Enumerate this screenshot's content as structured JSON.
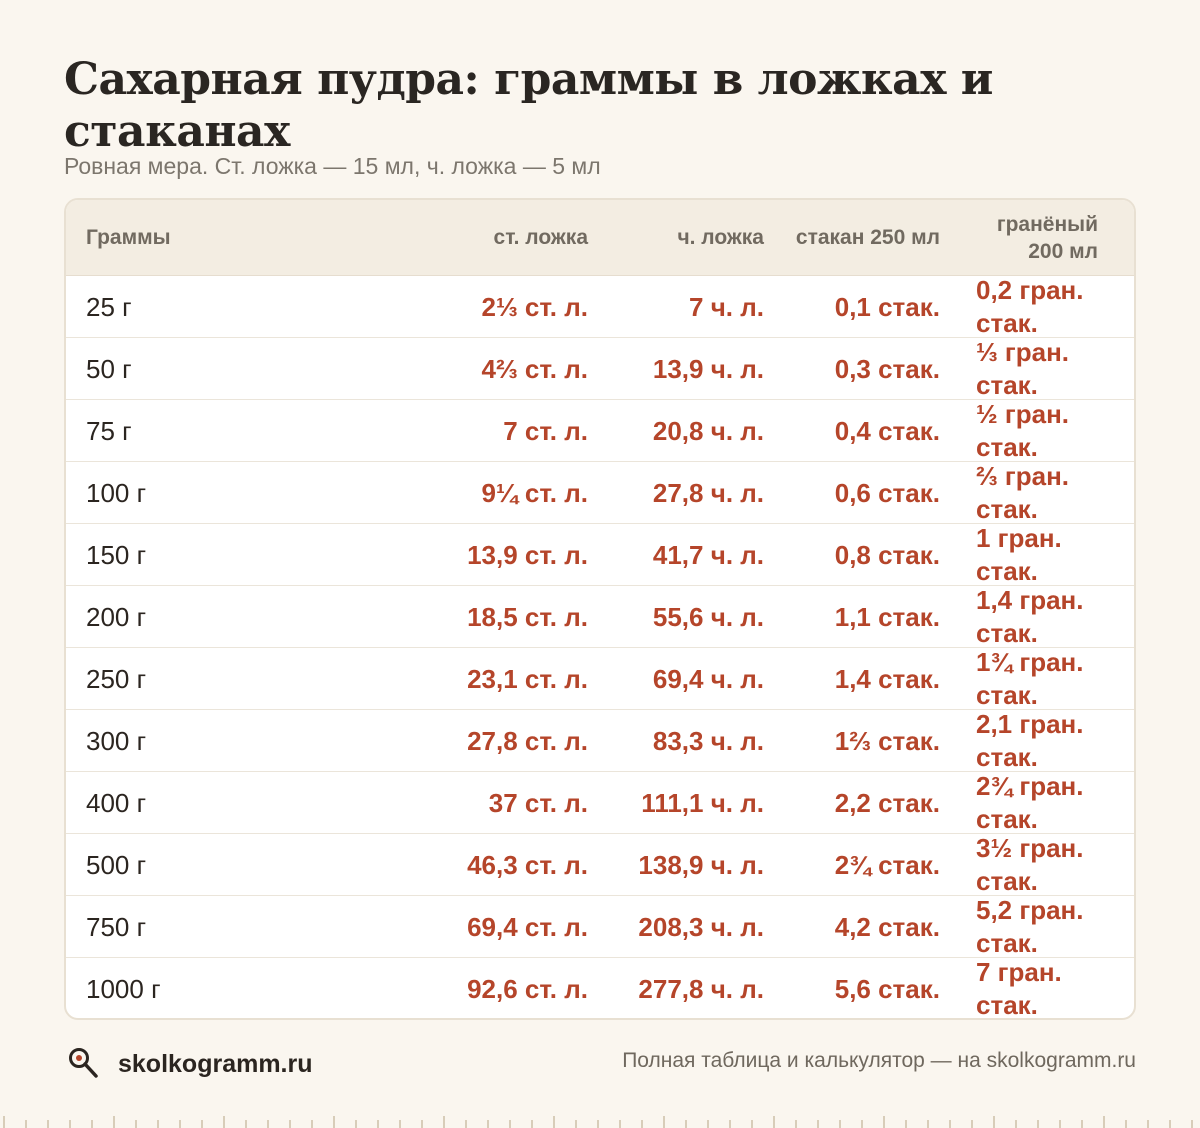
{
  "title": "Сахарная пудра: граммы в ложках и стаканах",
  "subtitle": "Ровная мера. Ст. ложка — 15 мл, ч. ложка — 5 мл",
  "columns": [
    "Граммы",
    "ст. ложка",
    "ч. ложка",
    "стакан 250 мл",
    "гранёный 200 мл"
  ],
  "rows": [
    [
      "25 г",
      "2⅓ ст. л.",
      "7 ч. л.",
      "0,1 стак.",
      "0,2 гран. стак."
    ],
    [
      "50 г",
      "4⅔ ст. л.",
      "13,9 ч. л.",
      "0,3 стак.",
      "⅓ гран. стак."
    ],
    [
      "75 г",
      "7 ст. л.",
      "20,8 ч. л.",
      "0,4 стак.",
      "½ гран. стак."
    ],
    [
      "100 г",
      "9¼ ст. л.",
      "27,8 ч. л.",
      "0,6 стак.",
      "⅔ гран. стак."
    ],
    [
      "150 г",
      "13,9 ст. л.",
      "41,7 ч. л.",
      "0,8 стак.",
      "1 гран. стак."
    ],
    [
      "200 г",
      "18,5 ст. л.",
      "55,6 ч. л.",
      "1,1 стак.",
      "1,4 гран. стак."
    ],
    [
      "250 г",
      "23,1 ст. л.",
      "69,4 ч. л.",
      "1,4 стак.",
      "1¾ гран. стак."
    ],
    [
      "300 г",
      "27,8 ст. л.",
      "83,3 ч. л.",
      "1⅔ стак.",
      "2,1 гран. стак."
    ],
    [
      "400 г",
      "37 ст. л.",
      "111,1 ч. л.",
      "2,2 стак.",
      "2¾ гран. стак."
    ],
    [
      "500 г",
      "46,3 ст. л.",
      "138,9 ч. л.",
      "2¾ стак.",
      "3½ гран. стак."
    ],
    [
      "750 г",
      "69,4 ст. л.",
      "208,3 ч. л.",
      "4,2 стак.",
      "5,2 гран. стак."
    ],
    [
      "1000 г",
      "92,6 ст. л.",
      "277,8 ч. л.",
      "5,6 стак.",
      "7 гран. стак."
    ]
  ],
  "footer": {
    "brand": "skolkogramm.ru",
    "note": "Полная таблица и калькулятор — на skolkogramm.ru",
    "logo_icon": "magnifier-icon"
  },
  "colors": {
    "background": "#faf6ef",
    "accent": "#b5452a",
    "header_bg": "#f3ede2"
  }
}
